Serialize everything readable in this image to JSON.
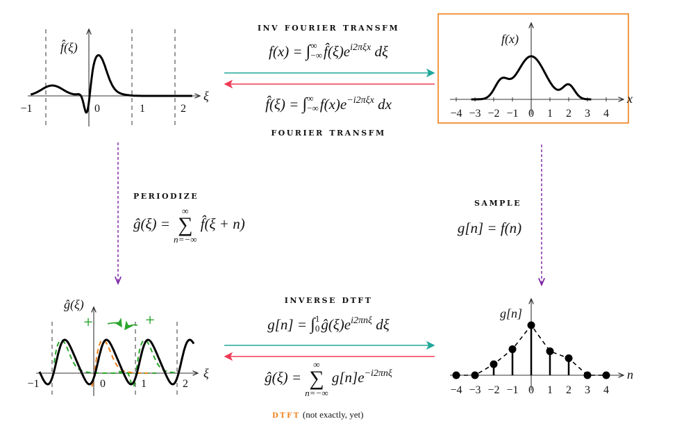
{
  "colors": {
    "forward_arrow": "#20a79a",
    "backward_arrow": "#ef3b55",
    "vertical_arrow": "#7a1fa2",
    "highlight_box": "#f07f18",
    "periodic_copies": "#2aa52a",
    "single_copy": "#f07f18",
    "dtft_label": "#f07f18"
  },
  "top": {
    "inverse_label": "inv fourier transfm",
    "inverse_eq": {
      "lhs": "f(x) = ",
      "lim_top": "∞",
      "lim_bot": "−∞",
      "body": "f̂(ξ)e",
      "exp": "i2πξx",
      "tail": " dξ"
    },
    "forward_eq": {
      "lhs": "f̂(ξ) = ",
      "lim_top": "∞",
      "lim_bot": "−∞",
      "body": "f(x)e",
      "exp": "−i2πξx",
      "tail": " dx"
    },
    "forward_label": "fourier transfm"
  },
  "left_mid": {
    "label": "periodize",
    "eq": {
      "lhs": "ĝ(ξ) = ",
      "sum_top": "∞",
      "sum_bot": "n=−∞",
      "body": "f̂(ξ + n)"
    }
  },
  "right_mid": {
    "label": "sample",
    "eq": "g[n] = f(n)"
  },
  "bottom": {
    "inverse_label": "inverse dtft",
    "inverse_eq": {
      "lhs": "g[n] = ",
      "lim_top": "1",
      "lim_bot": "0",
      "body": "ĝ(ξ)e",
      "exp": "i2πnξ",
      "tail": " dξ"
    },
    "forward_eq": {
      "lhs": "ĝ(ξ) = ",
      "sum_top": "∞",
      "sum_bot": "n=−∞",
      "body": "g[n]e",
      "exp": "−i2πnξ"
    },
    "dtft_label": "dtft",
    "dtft_note": "(not exactly, yet)"
  },
  "plots": {
    "fhat": {
      "ylabel": "f̂(ξ)",
      "xlabel": "ξ",
      "ticks": [
        "−1",
        "0",
        "1",
        "2"
      ],
      "periodic_plus": "+"
    },
    "f": {
      "ylabel": "f(x)",
      "xlabel": "x",
      "ticks": [
        "−4",
        "−3",
        "−2",
        "−1",
        "0",
        "1",
        "2",
        "3",
        "4"
      ]
    },
    "ghat": {
      "ylabel": "ĝ(ξ)",
      "xlabel": "ξ",
      "ticks": [
        "−1",
        "0",
        "1",
        "2"
      ],
      "plus": [
        "+",
        "+"
      ]
    },
    "g": {
      "ylabel": "g[n]",
      "xlabel": "n",
      "ticks": [
        "−4",
        "−3",
        "−2",
        "−1",
        "0",
        "1",
        "2",
        "3",
        "4"
      ],
      "n": [
        -4,
        -3,
        -2,
        -1,
        0,
        1,
        2,
        3,
        4
      ],
      "values": [
        0,
        0,
        0.22,
        0.52,
        1,
        0.48,
        0.34,
        0,
        0
      ]
    }
  }
}
